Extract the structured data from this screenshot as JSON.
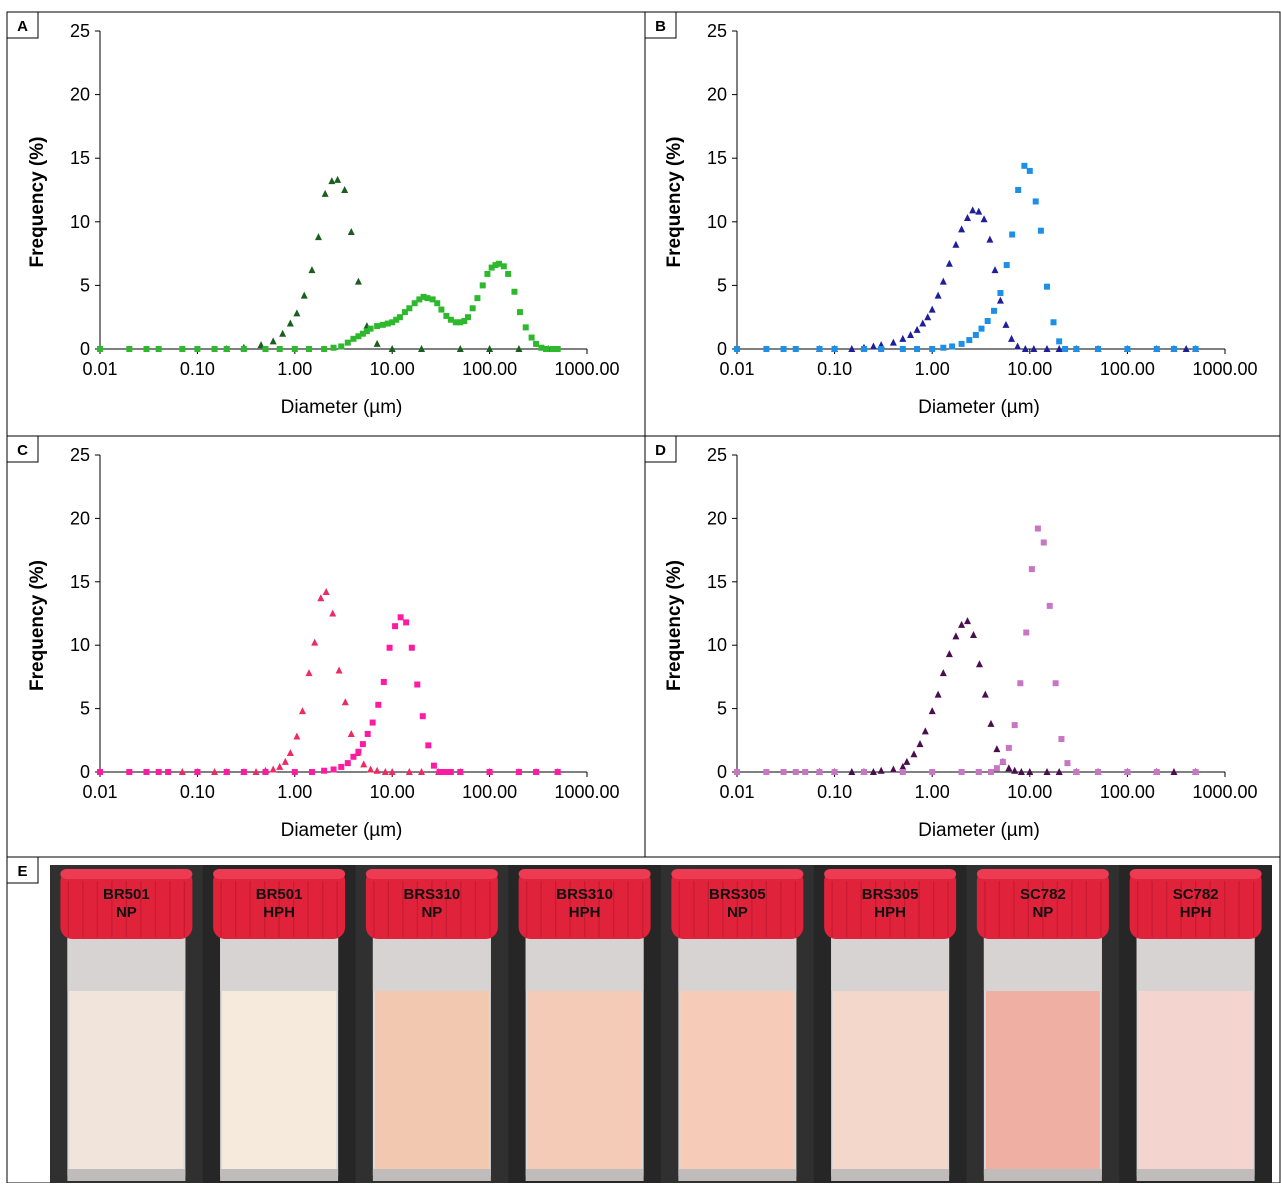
{
  "panels": [
    {
      "letter": "A"
    },
    {
      "letter": "B"
    },
    {
      "letter": "C"
    },
    {
      "letter": "D"
    },
    {
      "letter": "E"
    }
  ],
  "chart_data": [
    {
      "panel": "A",
      "type": "scatter",
      "xscale": "log",
      "xlabel": "Diameter (µm)",
      "ylabel": "Frequency (%)",
      "xlim": [
        0.01,
        1000
      ],
      "ylim": [
        0,
        25
      ],
      "xticks": [
        "0.01",
        "0.10",
        "1.00",
        "10.00",
        "100.00",
        "1000.00"
      ],
      "yticks": [
        "0",
        "5",
        "10",
        "15",
        "20",
        "25"
      ],
      "grid": false,
      "legend": "none",
      "series": [
        {
          "marker": "triangle",
          "color": "#1b5e20",
          "x": [
            0.2,
            0.3,
            0.45,
            0.6,
            0.75,
            0.9,
            1.05,
            1.25,
            1.5,
            1.75,
            2.05,
            2.4,
            2.75,
            3.25,
            3.8,
            4.5,
            5.5,
            7,
            10,
            20,
            50,
            100,
            200,
            400
          ],
          "y": [
            0,
            0.1,
            0.3,
            0.6,
            1.2,
            2,
            2.8,
            4.2,
            6.2,
            8.8,
            12.2,
            13.2,
            13.3,
            12.5,
            9.2,
            5.3,
            1.8,
            0.4,
            0,
            0,
            0,
            0,
            0,
            0
          ]
        },
        {
          "marker": "square",
          "color": "#2eb82e",
          "x": [
            0.01,
            0.02,
            0.03,
            0.04,
            0.07,
            0.1,
            0.15,
            0.2,
            0.3,
            0.5,
            0.7,
            1,
            1.4,
            2,
            2.5,
            3,
            3.5,
            4,
            4.5,
            5,
            5.5,
            6,
            7,
            8,
            9,
            10,
            11,
            12,
            13.5,
            15,
            17,
            19,
            21,
            23,
            26,
            29,
            32,
            36,
            40,
            45,
            50,
            55,
            60,
            67,
            75,
            85,
            95,
            105,
            115,
            125,
            140,
            155,
            180,
            205,
            235,
            270,
            300,
            340,
            380,
            440,
            500
          ],
          "y": [
            0,
            0,
            0,
            0,
            0,
            0,
            0,
            0,
            0,
            0,
            0,
            0,
            0,
            0,
            0.1,
            0.2,
            0.5,
            0.8,
            1,
            1.2,
            1.4,
            1.6,
            1.8,
            1.9,
            2,
            2.1,
            2.3,
            2.5,
            2.9,
            3.2,
            3.6,
            3.9,
            4.1,
            4,
            3.9,
            3.6,
            3.1,
            2.6,
            2.3,
            2.1,
            2.1,
            2.2,
            2.5,
            3.2,
            4,
            5,
            5.9,
            6.4,
            6.6,
            6.7,
            6.5,
            5.9,
            4.5,
            2.9,
            1.7,
            0.9,
            0.4,
            0.1,
            0,
            0,
            0
          ]
        }
      ]
    },
    {
      "panel": "B",
      "type": "scatter",
      "xscale": "log",
      "xlabel": "Diameter (µm)",
      "ylabel": "Frequency (%)",
      "xlim": [
        0.01,
        1000
      ],
      "ylim": [
        0,
        25
      ],
      "xticks": [
        "0.01",
        "0.10",
        "1.00",
        "10.00",
        "100.00",
        "1000.00"
      ],
      "yticks": [
        "0",
        "5",
        "10",
        "15",
        "20",
        "25"
      ],
      "grid": false,
      "legend": "none",
      "series": [
        {
          "marker": "triangle",
          "color": "#1f1f99",
          "x": [
            0.07,
            0.1,
            0.15,
            0.2,
            0.25,
            0.3,
            0.4,
            0.5,
            0.6,
            0.7,
            0.8,
            0.9,
            1,
            1.15,
            1.3,
            1.5,
            1.75,
            2,
            2.3,
            2.6,
            3,
            3.4,
            3.9,
            4.4,
            5,
            5.7,
            6.5,
            7.5,
            9,
            11,
            15,
            20,
            30,
            50,
            100,
            200,
            300,
            400,
            500
          ],
          "y": [
            0,
            0,
            0,
            0.1,
            0.2,
            0.3,
            0.5,
            0.8,
            1.1,
            1.5,
            2,
            2.5,
            3.1,
            4.2,
            5.3,
            6.7,
            8.2,
            9.4,
            10.3,
            10.9,
            10.8,
            10.2,
            8.6,
            6.2,
            3.8,
            1.9,
            0.8,
            0.2,
            0,
            0,
            0,
            0,
            0,
            0,
            0,
            0,
            0,
            0,
            0
          ]
        },
        {
          "marker": "square",
          "color": "#1e8fe6",
          "x": [
            0.01,
            0.02,
            0.03,
            0.04,
            0.07,
            0.1,
            0.2,
            0.3,
            0.5,
            0.7,
            1,
            1.3,
            1.6,
            2,
            2.4,
            2.8,
            3.2,
            3.7,
            4.3,
            5,
            5.8,
            6.6,
            7.6,
            8.8,
            10,
            11.5,
            13,
            15,
            17.5,
            20,
            23,
            30,
            50,
            100,
            200,
            300,
            500
          ],
          "y": [
            0,
            0,
            0,
            0,
            0,
            0,
            0,
            0,
            0,
            0,
            0,
            0.1,
            0.2,
            0.4,
            0.7,
            1.1,
            1.6,
            2.2,
            3,
            4.4,
            6.6,
            9,
            12.5,
            14.4,
            14,
            11.6,
            9.3,
            4.9,
            2.1,
            0.6,
            0,
            0,
            0,
            0,
            0,
            0,
            0
          ]
        }
      ]
    },
    {
      "panel": "C",
      "type": "scatter",
      "xscale": "log",
      "xlabel": "Diameter (µm)",
      "ylabel": "Frequency (%)",
      "xlim": [
        0.01,
        1000
      ],
      "ylim": [
        0,
        25
      ],
      "xticks": [
        "0.01",
        "0.10",
        "1.00",
        "10.00",
        "100.00",
        "1000.00"
      ],
      "yticks": [
        "0",
        "5",
        "10",
        "15",
        "20",
        "25"
      ],
      "grid": false,
      "legend": "none",
      "series": [
        {
          "marker": "triangle",
          "color": "#ee2a62",
          "x": [
            0.07,
            0.1,
            0.15,
            0.2,
            0.3,
            0.4,
            0.5,
            0.6,
            0.7,
            0.8,
            0.9,
            1.05,
            1.2,
            1.4,
            1.6,
            1.85,
            2.1,
            2.45,
            2.85,
            3.3,
            3.8,
            4.4,
            5.1,
            6,
            7,
            8.5,
            10,
            15,
            20,
            30,
            50,
            100,
            200,
            300,
            500
          ],
          "y": [
            0,
            0,
            0,
            0,
            0,
            0,
            0.1,
            0.2,
            0.4,
            0.8,
            1.5,
            2.8,
            4.8,
            7.8,
            10.2,
            13.7,
            14.2,
            12.5,
            8,
            5.5,
            3,
            1.5,
            0.6,
            0.2,
            0.1,
            0,
            0,
            0,
            0,
            0,
            0,
            0,
            0,
            0,
            0
          ]
        },
        {
          "marker": "square",
          "color": "#ff1aa3",
          "x": [
            0.01,
            0.02,
            0.03,
            0.04,
            0.05,
            0.1,
            0.2,
            0.3,
            0.5,
            1,
            1.5,
            2,
            2.5,
            3,
            3.5,
            4,
            4.5,
            5,
            5.6,
            6.3,
            7.2,
            8.2,
            9.4,
            10.7,
            12.2,
            13.9,
            15.9,
            18.1,
            20.6,
            23.5,
            26.8,
            30.6,
            34.9,
            40,
            50,
            100,
            200,
            300,
            500
          ],
          "y": [
            0,
            0,
            0,
            0,
            0,
            0,
            0,
            0,
            0,
            0,
            0,
            0.1,
            0.2,
            0.4,
            0.7,
            1.2,
            1.6,
            2.2,
            3,
            3.9,
            5.3,
            7.1,
            9.8,
            11.5,
            12.2,
            11.8,
            9.8,
            6.9,
            4.4,
            2.1,
            0.5,
            0,
            0,
            0,
            0,
            0,
            0,
            0,
            0
          ]
        }
      ]
    },
    {
      "panel": "D",
      "type": "scatter",
      "xscale": "log",
      "xlabel": "Diameter (µm)",
      "ylabel": "Frequency (%)",
      "xlim": [
        0.01,
        1000
      ],
      "ylim": [
        0,
        25
      ],
      "xticks": [
        "0.01",
        "0.10",
        "1.00",
        "10.00",
        "100.00",
        "1000.00"
      ],
      "yticks": [
        "0",
        "5",
        "10",
        "15",
        "20",
        "25"
      ],
      "grid": false,
      "legend": "none",
      "series": [
        {
          "marker": "triangle",
          "color": "#4a0e4e",
          "x": [
            0.07,
            0.1,
            0.15,
            0.2,
            0.25,
            0.3,
            0.4,
            0.5,
            0.55,
            0.65,
            0.75,
            0.85,
            1,
            1.15,
            1.3,
            1.5,
            1.75,
            2,
            2.3,
            2.65,
            3.05,
            3.5,
            4,
            4.6,
            5.3,
            6.1,
            7,
            8.2,
            10,
            15,
            20,
            30,
            50,
            100,
            200,
            300,
            500
          ],
          "y": [
            0,
            0,
            0,
            0,
            0,
            0.1,
            0.2,
            0.4,
            0.8,
            1.4,
            2.2,
            3.2,
            4.8,
            6.1,
            7.8,
            9.3,
            10.7,
            11.6,
            11.9,
            10.8,
            8.5,
            6.1,
            3.8,
            1.8,
            0.8,
            0.3,
            0.1,
            0,
            0,
            0,
            0,
            0,
            0,
            0,
            0,
            0,
            0
          ]
        },
        {
          "marker": "square",
          "color": "#c875c4",
          "x": [
            0.01,
            0.02,
            0.03,
            0.04,
            0.05,
            0.07,
            0.1,
            0.2,
            0.5,
            1,
            2,
            3,
            4,
            4.6,
            5.3,
            6.1,
            7,
            8,
            9.2,
            10.5,
            12.1,
            13.9,
            16,
            18.4,
            21.1,
            24.3,
            30,
            50,
            100,
            200,
            500
          ],
          "y": [
            0,
            0,
            0,
            0,
            0,
            0,
            0,
            0,
            0,
            0,
            0,
            0,
            0,
            0.3,
            0.8,
            1.9,
            3.7,
            7,
            11,
            16,
            19.2,
            18.1,
            13.1,
            7,
            2.6,
            0.7,
            0,
            0,
            0,
            0,
            0
          ]
        }
      ]
    }
  ],
  "photo": {
    "bottles": [
      {
        "line1": "BR501",
        "line2": "NP",
        "liquid": "#f1e4da"
      },
      {
        "line1": "BR501",
        "line2": "HPH",
        "liquid": "#f6eadd"
      },
      {
        "line1": "BRS310",
        "line2": "NP",
        "liquid": "#f3c8b0"
      },
      {
        "line1": "BRS310",
        "line2": "HPH",
        "liquid": "#f4cbb6"
      },
      {
        "line1": "BRS305",
        "line2": "NP",
        "liquid": "#f6ccb8"
      },
      {
        "line1": "BRS305",
        "line2": "HPH",
        "liquid": "#f4d7cb"
      },
      {
        "line1": "SC782",
        "line2": "NP",
        "liquid": "#efb0a3"
      },
      {
        "line1": "SC782",
        "line2": "HPH",
        "liquid": "#f3d4cf"
      }
    ],
    "cap_color": "#e0223b",
    "background": "#2b2b2b"
  }
}
